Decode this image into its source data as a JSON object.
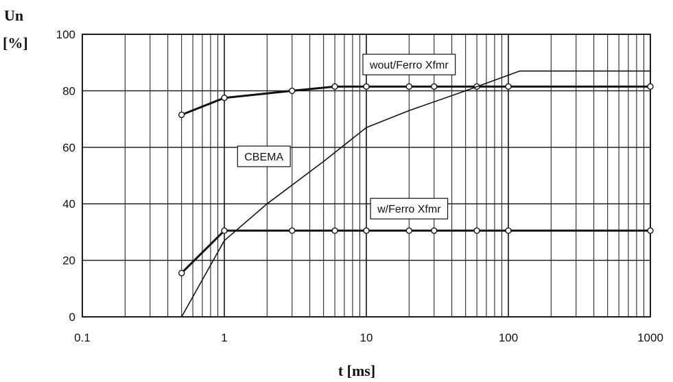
{
  "chart_data": {
    "type": "line",
    "title": "",
    "xlabel": "t [ms]",
    "ylabel_line1": "Un",
    "ylabel_line2": "[%]",
    "xscale": "log",
    "xlim": [
      0.1,
      1000
    ],
    "ylim": [
      0,
      100
    ],
    "grid": true,
    "x_tick_labels": [
      "0.1",
      "1",
      "10",
      "100",
      "1000"
    ],
    "y_tick_labels": [
      "0",
      "20",
      "40",
      "60",
      "80",
      "100"
    ],
    "series": [
      {
        "name": "wout/Ferro Xfmr",
        "line_width": 3,
        "markers": true,
        "points": [
          {
            "x": 0.5,
            "y": 71.5
          },
          {
            "x": 1,
            "y": 77.5
          },
          {
            "x": 3,
            "y": 80
          },
          {
            "x": 6,
            "y": 81.5
          },
          {
            "x": 10,
            "y": 81.5
          },
          {
            "x": 20,
            "y": 81.5
          },
          {
            "x": 30,
            "y": 81.5
          },
          {
            "x": 60,
            "y": 81.5
          },
          {
            "x": 100,
            "y": 81.5
          },
          {
            "x": 1000,
            "y": 81.5
          }
        ]
      },
      {
        "name": "CBEMA",
        "line_width": 1.6,
        "markers": false,
        "points": [
          {
            "x": 0.5,
            "y": 0
          },
          {
            "x": 1,
            "y": 27
          },
          {
            "x": 2,
            "y": 40
          },
          {
            "x": 5,
            "y": 55
          },
          {
            "x": 10,
            "y": 67
          },
          {
            "x": 20,
            "y": 73
          },
          {
            "x": 50,
            "y": 80
          },
          {
            "x": 120,
            "y": 87
          },
          {
            "x": 1000,
            "y": 87
          }
        ]
      },
      {
        "name": "w/Ferro Xfmr",
        "line_width": 3,
        "markers": true,
        "points": [
          {
            "x": 0.5,
            "y": 15.5
          },
          {
            "x": 1,
            "y": 30.5
          },
          {
            "x": 3,
            "y": 30.5
          },
          {
            "x": 6,
            "y": 30.5
          },
          {
            "x": 10,
            "y": 30.5
          },
          {
            "x": 20,
            "y": 30.5
          },
          {
            "x": 30,
            "y": 30.5
          },
          {
            "x": 60,
            "y": 30.5
          },
          {
            "x": 100,
            "y": 30.5
          },
          {
            "x": 1000,
            "y": 30.5
          }
        ]
      }
    ],
    "annotations": [
      {
        "text": "wout/Ferro Xfmr",
        "series": "wout/Ferro Xfmr",
        "x": 20,
        "y": 89.3
      },
      {
        "text": "CBEMA",
        "series": "CBEMA",
        "x": 1.9,
        "y": 56.8
      },
      {
        "text": "w/Ferro Xfmr",
        "series": "w/Ferro Xfmr",
        "x": 20,
        "y": 38.3
      }
    ]
  }
}
